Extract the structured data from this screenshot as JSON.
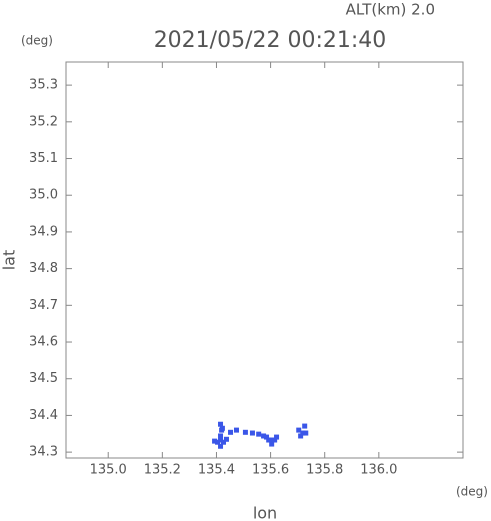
{
  "chart_data": {
    "type": "scatter",
    "title": "2021/05/22 00:21:40",
    "annotation": "ALT(km) 2.0",
    "y_unit": "(deg)",
    "x_unit": "(deg)",
    "xlabel": "lon",
    "ylabel": "lat",
    "xlim": [
      134.844,
      136.311
    ],
    "ylim": [
      34.284,
      35.363
    ],
    "xticks": [
      {
        "value": 135,
        "label": "135.0"
      },
      135.2,
      135.4,
      135.6,
      135.8,
      {
        "value": 136,
        "label": "136.0"
      }
    ],
    "yticks": [
      34.3,
      34.4,
      34.5,
      34.6,
      34.7,
      34.8,
      34.9,
      {
        "value": 35,
        "label": "35.0"
      },
      35.1,
      35.2,
      35.3
    ],
    "series": [
      {
        "color": "#3a56e8",
        "x": [
          135.415,
          135.404,
          135.426,
          135.415,
          135.393,
          135.437,
          135.415,
          135.419,
          135.415,
          135.422,
          135.452,
          135.474,
          135.507,
          135.533,
          135.556,
          135.574,
          135.6,
          135.593,
          135.615,
          135.604,
          135.585,
          135.622,
          135.704,
          135.719,
          135.73,
          135.711,
          135.726
        ],
        "values": [
          34.333,
          34.327,
          34.327,
          34.316,
          34.33,
          34.335,
          34.344,
          34.36,
          34.376,
          34.365,
          34.354,
          34.36,
          34.354,
          34.352,
          34.349,
          34.344,
          34.333,
          34.333,
          34.333,
          34.322,
          34.341,
          34.341,
          34.36,
          34.352,
          34.352,
          34.344,
          34.371
        ]
      }
    ]
  }
}
